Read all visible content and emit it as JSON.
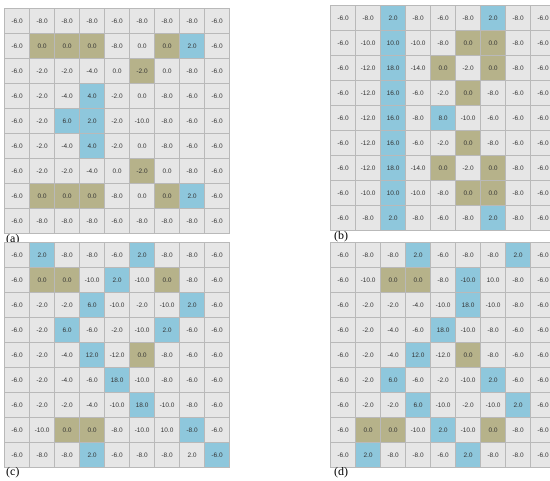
{
  "colors": {
    "grey": "#e6e6e6",
    "olive": "#b6b28a",
    "blue": "#8ec7dc",
    "grid_line": "#b9b9b9"
  },
  "panels": [
    {
      "id": "a",
      "label": "(a)",
      "grid": [
        [
          "-6.0",
          "-8.0",
          "-8.0",
          "-8.0",
          "-6.0",
          "-8.0",
          "-8.0",
          "-8.0",
          "-6.0"
        ],
        [
          "-6.0",
          "0.0",
          "0.0",
          "0.0",
          "-8.0",
          "0.0",
          "0.0",
          "2.0",
          "-6.0"
        ],
        [
          "-6.0",
          "-2.0",
          "-2.0",
          "-4.0",
          "0.0",
          "-2.0",
          "0.0",
          "-8.0",
          "-6.0"
        ],
        [
          "-6.0",
          "-2.0",
          "-4.0",
          "4.0",
          "-2.0",
          "0.0",
          "-8.0",
          "-6.0",
          "-6.0"
        ],
        [
          "-6.0",
          "-2.0",
          "6.0",
          "2.0",
          "-2.0",
          "-10.0",
          "-8.0",
          "-6.0",
          "-6.0"
        ],
        [
          "-6.0",
          "-2.0",
          "-4.0",
          "4.0",
          "-2.0",
          "0.0",
          "-8.0",
          "-6.0",
          "-6.0"
        ],
        [
          "-6.0",
          "-2.0",
          "-2.0",
          "-4.0",
          "0.0",
          "-2.0",
          "0.0",
          "-8.0",
          "-6.0"
        ],
        [
          "-6.0",
          "0.0",
          "0.0",
          "0.0",
          "-8.0",
          "0.0",
          "0.0",
          "2.0",
          "-6.0"
        ],
        [
          "-6.0",
          "-8.0",
          "-8.0",
          "-8.0",
          "-6.0",
          "-8.0",
          "-8.0",
          "-8.0",
          "-6.0"
        ]
      ],
      "colors": [
        "ggggggggg",
        "goooggobg",
        "gggggoggg",
        "gggbggggg",
        "ggbbggggg",
        "gggbggggg",
        "gggggoggg",
        "goooggobg",
        "ggggggggg"
      ]
    },
    {
      "id": "b",
      "label": "(b)",
      "grid": [
        [
          "-6.0",
          "-8.0",
          "2.0",
          "-8.0",
          "-6.0",
          "-8.0",
          "2.0",
          "-8.0",
          "-6.0"
        ],
        [
          "-6.0",
          "-10.0",
          "10.0",
          "-10.0",
          "-8.0",
          "0.0",
          "0.0",
          "-8.0",
          "-6.0"
        ],
        [
          "-6.0",
          "-12.0",
          "18.0",
          "-14.0",
          "0.0",
          "-2.0",
          "0.0",
          "-8.0",
          "-6.0"
        ],
        [
          "-6.0",
          "-12.0",
          "16.0",
          "-6.0",
          "-2.0",
          "0.0",
          "-8.0",
          "-6.0",
          "-6.0"
        ],
        [
          "-6.0",
          "-12.0",
          "16.0",
          "-8.0",
          "8.0",
          "-10.0",
          "-6.0",
          "-6.0",
          "-6.0"
        ],
        [
          "-6.0",
          "-12.0",
          "16.0",
          "-6.0",
          "-2.0",
          "0.0",
          "-8.0",
          "-6.0",
          "-6.0"
        ],
        [
          "-6.0",
          "-12.0",
          "18.0",
          "-14.0",
          "0.0",
          "-2.0",
          "0.0",
          "-8.0",
          "-6.0"
        ],
        [
          "-6.0",
          "-10.0",
          "10.0",
          "-10.0",
          "-8.0",
          "0.0",
          "0.0",
          "-8.0",
          "-6.0"
        ],
        [
          "-6.0",
          "-8.0",
          "2.0",
          "-8.0",
          "-6.0",
          "-8.0",
          "2.0",
          "-8.0",
          "-6.0"
        ]
      ],
      "colors": [
        "ggbgggbgg",
        "ggbggoogg",
        "ggbgogogg",
        "ggbggoggg",
        "ggbgbgggg",
        "ggbggoggg",
        "ggbgogogg",
        "ggbggoogg",
        "ggbgggbgg"
      ]
    },
    {
      "id": "c",
      "label": "(c)",
      "grid": [
        [
          "-6.0",
          "2.0",
          "-8.0",
          "-8.0",
          "-6.0",
          "2.0",
          "-8.0",
          "-8.0",
          "-6.0"
        ],
        [
          "-6.0",
          "0.0",
          "0.0",
          "-10.0",
          "2.0",
          "-10.0",
          "0.0",
          "-8.0",
          "-6.0"
        ],
        [
          "-6.0",
          "-2.0",
          "-2.0",
          "6.0",
          "-10.0",
          "-2.0",
          "-10.0",
          "2.0",
          "-6.0"
        ],
        [
          "-6.0",
          "-2.0",
          "6.0",
          "-6.0",
          "-2.0",
          "-10.0",
          "2.0",
          "-6.0",
          "-6.0"
        ],
        [
          "-6.0",
          "-2.0",
          "-4.0",
          "12.0",
          "-12.0",
          "0.0",
          "-8.0",
          "-6.0",
          "-6.0"
        ],
        [
          "-6.0",
          "-2.0",
          "-4.0",
          "-6.0",
          "18.0",
          "-10.0",
          "-8.0",
          "-6.0",
          "-6.0"
        ],
        [
          "-6.0",
          "-2.0",
          "-2.0",
          "-4.0",
          "-10.0",
          "18.0",
          "-10.0",
          "-8.0",
          "-6.0"
        ],
        [
          "-6.0",
          "-10.0",
          "0.0",
          "0.0",
          "-8.0",
          "-10.0",
          "10.0",
          "-8.0",
          "-6.0"
        ],
        [
          "-6.0",
          "-8.0",
          "-8.0",
          "2.0",
          "-6.0",
          "-8.0",
          "-8.0",
          "2.0",
          "-6.0"
        ]
      ],
      "colors": [
        "gbgggbggg",
        "googbgogg",
        "gggbgggbg",
        "ggbgggbgg",
        "gggbgoggg",
        "ggggbgggg",
        "gggggbggg",
        "ggoogggbg",
        "gggbggggb"
      ]
    },
    {
      "id": "d",
      "label": "(d)",
      "grid": [
        [
          "-6.0",
          "-8.0",
          "-8.0",
          "2.0",
          "-6.0",
          "-8.0",
          "-8.0",
          "2.0",
          "-6.0"
        ],
        [
          "-6.0",
          "-10.0",
          "0.0",
          "0.0",
          "-8.0",
          "-10.0",
          "10.0",
          "-8.0",
          "-6.0"
        ],
        [
          "-6.0",
          "-2.0",
          "-2.0",
          "-4.0",
          "-10.0",
          "18.0",
          "-10.0",
          "-8.0",
          "-6.0"
        ],
        [
          "-6.0",
          "-2.0",
          "-4.0",
          "-6.0",
          "18.0",
          "-10.0",
          "-8.0",
          "-6.0",
          "-6.0"
        ],
        [
          "-6.0",
          "-2.0",
          "-4.0",
          "12.0",
          "-12.0",
          "0.0",
          "-8.0",
          "-6.0",
          "-6.0"
        ],
        [
          "-6.0",
          "-2.0",
          "6.0",
          "-6.0",
          "-2.0",
          "-10.0",
          "2.0",
          "-6.0",
          "-6.0"
        ],
        [
          "-6.0",
          "-2.0",
          "-2.0",
          "6.0",
          "-10.0",
          "-2.0",
          "-10.0",
          "2.0",
          "-6.0"
        ],
        [
          "-6.0",
          "0.0",
          "0.0",
          "-10.0",
          "2.0",
          "-10.0",
          "0.0",
          "-8.0",
          "-6.0"
        ],
        [
          "-6.0",
          "2.0",
          "-8.0",
          "-8.0",
          "-6.0",
          "2.0",
          "-8.0",
          "-8.0",
          "-6.0"
        ]
      ],
      "colors": [
        "gggbgggbg",
        "ggoogbggg",
        "gggggbggg",
        "ggggbgggg",
        "gggbgoggg",
        "ggbgggbgg",
        "gggbgggbg",
        "googbgogg",
        "gbgggbggg"
      ]
    }
  ]
}
